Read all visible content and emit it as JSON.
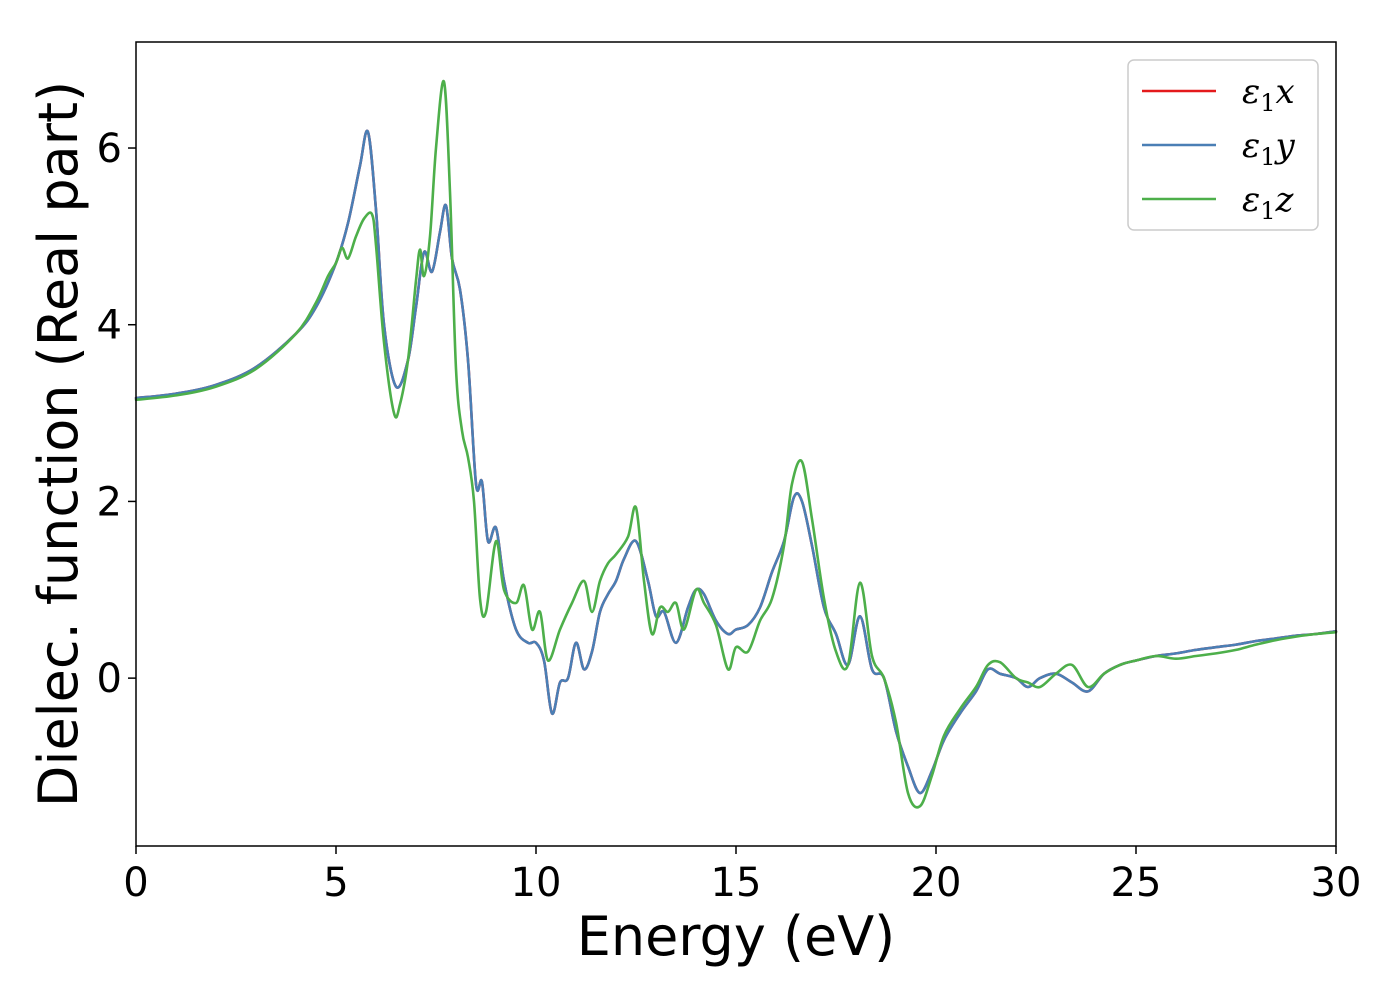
{
  "chart_data": {
    "type": "line",
    "xlabel": "Energy (eV)",
    "ylabel": "Dielec. function (Real part)",
    "xlim": [
      0,
      30
    ],
    "ylim": [
      -1.9,
      7.2
    ],
    "xticks": [
      0,
      5,
      10,
      15,
      20,
      25,
      30
    ],
    "yticks": [
      0,
      2,
      4,
      6
    ],
    "grid": false,
    "legend_position": "top-right",
    "series": [
      {
        "name": "ε1x",
        "legend_main": "ε",
        "legend_sub": "1",
        "legend_tail": "x",
        "color": "#e41a1c",
        "x": [
          0,
          1,
          2,
          3,
          4,
          4.5,
          5,
          5.3,
          5.6,
          5.8,
          6.0,
          6.2,
          6.5,
          6.8,
          7.0,
          7.2,
          7.4,
          7.6,
          7.75,
          7.9,
          8.1,
          8.3,
          8.5,
          8.65,
          8.8,
          9.0,
          9.2,
          9.5,
          9.8,
          10.0,
          10.2,
          10.4,
          10.6,
          10.8,
          11.0,
          11.2,
          11.4,
          11.6,
          11.8,
          12.0,
          12.2,
          12.5,
          12.8,
          13.0,
          13.2,
          13.5,
          13.8,
          14.0,
          14.2,
          14.5,
          14.8,
          15.0,
          15.3,
          15.6,
          15.9,
          16.2,
          16.45,
          16.65,
          16.9,
          17.2,
          17.5,
          17.8,
          18.1,
          18.4,
          18.7,
          19.0,
          19.3,
          19.6,
          19.9,
          20.2,
          20.6,
          21.0,
          21.3,
          21.6,
          22.0,
          22.3,
          22.6,
          23.0,
          23.4,
          23.8,
          24.2,
          24.6,
          25.0,
          25.5,
          26.0,
          26.5,
          27.0,
          27.5,
          28.0,
          28.5,
          29.0,
          29.5,
          30.0
        ],
        "y": [
          3.17,
          3.22,
          3.32,
          3.52,
          3.9,
          4.2,
          4.7,
          5.15,
          5.8,
          6.18,
          5.3,
          4.0,
          3.3,
          3.6,
          4.2,
          4.82,
          4.6,
          5.05,
          5.35,
          4.75,
          4.4,
          3.6,
          2.2,
          2.22,
          1.55,
          1.7,
          1.1,
          0.55,
          0.4,
          0.4,
          0.2,
          -0.4,
          -0.05,
          0.0,
          0.4,
          0.1,
          0.3,
          0.75,
          0.95,
          1.1,
          1.35,
          1.55,
          1.1,
          0.7,
          0.75,
          0.4,
          0.8,
          1.0,
          0.95,
          0.65,
          0.5,
          0.55,
          0.6,
          0.8,
          1.2,
          1.55,
          2.05,
          2.0,
          1.5,
          0.8,
          0.5,
          0.15,
          0.7,
          0.1,
          0.0,
          -0.6,
          -1.0,
          -1.3,
          -1.05,
          -0.7,
          -0.4,
          -0.15,
          0.1,
          0.05,
          0.0,
          -0.1,
          0.0,
          0.05,
          -0.05,
          -0.15,
          0.05,
          0.15,
          0.2,
          0.25,
          0.28,
          0.32,
          0.35,
          0.38,
          0.42,
          0.45,
          0.48,
          0.5,
          0.53
        ]
      },
      {
        "name": "ε1y",
        "legend_main": "ε",
        "legend_sub": "1",
        "legend_tail": "y",
        "color": "#4a7fb5",
        "x": [
          0,
          1,
          2,
          3,
          4,
          4.5,
          5,
          5.3,
          5.6,
          5.8,
          6.0,
          6.2,
          6.5,
          6.8,
          7.0,
          7.2,
          7.4,
          7.6,
          7.75,
          7.9,
          8.1,
          8.3,
          8.5,
          8.65,
          8.8,
          9.0,
          9.2,
          9.5,
          9.8,
          10.0,
          10.2,
          10.4,
          10.6,
          10.8,
          11.0,
          11.2,
          11.4,
          11.6,
          11.8,
          12.0,
          12.2,
          12.5,
          12.8,
          13.0,
          13.2,
          13.5,
          13.8,
          14.0,
          14.2,
          14.5,
          14.8,
          15.0,
          15.3,
          15.6,
          15.9,
          16.2,
          16.45,
          16.65,
          16.9,
          17.2,
          17.5,
          17.8,
          18.1,
          18.4,
          18.7,
          19.0,
          19.3,
          19.6,
          19.9,
          20.2,
          20.6,
          21.0,
          21.3,
          21.6,
          22.0,
          22.3,
          22.6,
          23.0,
          23.4,
          23.8,
          24.2,
          24.6,
          25.0,
          25.5,
          26.0,
          26.5,
          27.0,
          27.5,
          28.0,
          28.5,
          29.0,
          29.5,
          30.0
        ],
        "y": [
          3.17,
          3.22,
          3.32,
          3.52,
          3.9,
          4.2,
          4.7,
          5.15,
          5.8,
          6.18,
          5.3,
          4.0,
          3.3,
          3.6,
          4.2,
          4.82,
          4.6,
          5.05,
          5.35,
          4.75,
          4.4,
          3.6,
          2.2,
          2.22,
          1.55,
          1.7,
          1.1,
          0.55,
          0.4,
          0.4,
          0.2,
          -0.4,
          -0.05,
          0.0,
          0.4,
          0.1,
          0.3,
          0.75,
          0.95,
          1.1,
          1.35,
          1.55,
          1.1,
          0.7,
          0.75,
          0.4,
          0.8,
          1.0,
          0.95,
          0.65,
          0.5,
          0.55,
          0.6,
          0.8,
          1.2,
          1.55,
          2.05,
          2.0,
          1.5,
          0.8,
          0.5,
          0.15,
          0.7,
          0.1,
          0.0,
          -0.6,
          -1.0,
          -1.3,
          -1.05,
          -0.7,
          -0.4,
          -0.15,
          0.1,
          0.05,
          0.0,
          -0.1,
          0.0,
          0.05,
          -0.05,
          -0.15,
          0.05,
          0.15,
          0.2,
          0.25,
          0.28,
          0.32,
          0.35,
          0.38,
          0.42,
          0.45,
          0.48,
          0.5,
          0.53
        ]
      },
      {
        "name": "ε1z",
        "legend_main": "ε",
        "legend_sub": "1",
        "legend_tail": "z",
        "color": "#4daf4a",
        "x": [
          0,
          1,
          2,
          3,
          4,
          4.5,
          4.8,
          5.0,
          5.15,
          5.3,
          5.5,
          5.7,
          5.9,
          6.0,
          6.2,
          6.45,
          6.6,
          6.8,
          7.0,
          7.1,
          7.2,
          7.35,
          7.5,
          7.7,
          7.85,
          8.0,
          8.15,
          8.3,
          8.45,
          8.6,
          8.75,
          9.0,
          9.2,
          9.5,
          9.7,
          9.9,
          10.1,
          10.3,
          10.6,
          10.9,
          11.2,
          11.4,
          11.6,
          11.8,
          12.0,
          12.3,
          12.5,
          12.7,
          12.9,
          13.1,
          13.3,
          13.5,
          13.7,
          14.0,
          14.2,
          14.5,
          14.8,
          15.0,
          15.3,
          15.6,
          15.9,
          16.2,
          16.4,
          16.65,
          16.9,
          17.2,
          17.5,
          17.8,
          18.1,
          18.4,
          18.7,
          19.0,
          19.3,
          19.6,
          19.9,
          20.2,
          20.6,
          21.0,
          21.3,
          21.6,
          22.0,
          22.3,
          22.6,
          23.0,
          23.4,
          23.8,
          24.2,
          24.6,
          25.0,
          25.5,
          26.0,
          26.5,
          27.0,
          27.5,
          28.0,
          28.5,
          29.0,
          29.5,
          30.0
        ],
        "y": [
          3.15,
          3.2,
          3.3,
          3.5,
          3.9,
          4.25,
          4.55,
          4.7,
          4.87,
          4.75,
          5.0,
          5.2,
          5.25,
          4.9,
          3.8,
          3.0,
          3.1,
          3.6,
          4.5,
          4.85,
          4.55,
          5.0,
          6.0,
          6.75,
          5.5,
          3.5,
          2.8,
          2.5,
          2.0,
          0.9,
          0.75,
          1.55,
          1.0,
          0.85,
          1.05,
          0.55,
          0.75,
          0.2,
          0.55,
          0.85,
          1.1,
          0.75,
          1.1,
          1.3,
          1.4,
          1.6,
          1.93,
          1.1,
          0.5,
          0.8,
          0.75,
          0.85,
          0.55,
          1.0,
          0.85,
          0.6,
          0.1,
          0.35,
          0.3,
          0.65,
          0.9,
          1.5,
          2.2,
          2.45,
          1.8,
          0.9,
          0.3,
          0.15,
          1.08,
          0.25,
          0.0,
          -0.5,
          -1.3,
          -1.45,
          -1.1,
          -0.65,
          -0.35,
          -0.1,
          0.15,
          0.18,
          0.0,
          -0.05,
          -0.1,
          0.05,
          0.15,
          -0.1,
          0.05,
          0.15,
          0.2,
          0.25,
          0.22,
          0.25,
          0.28,
          0.32,
          0.38,
          0.43,
          0.47,
          0.5,
          0.52
        ]
      }
    ]
  }
}
